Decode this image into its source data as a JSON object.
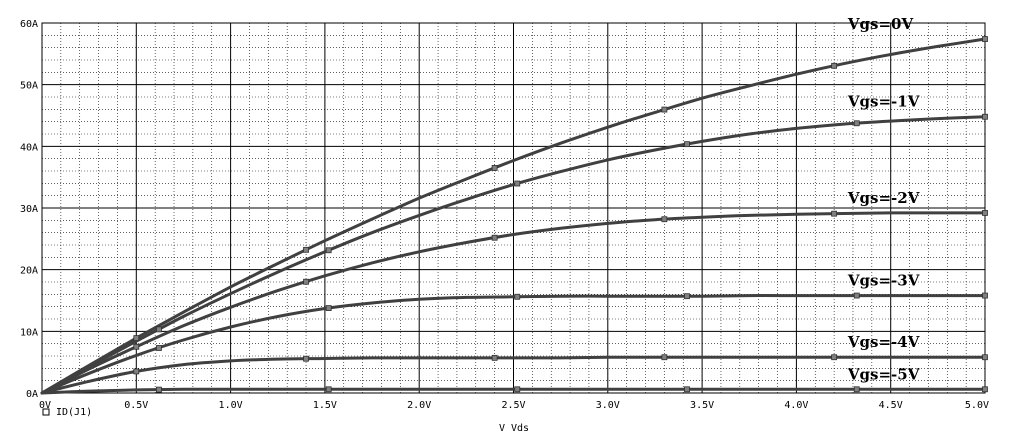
{
  "chart_data": {
    "type": "line",
    "xlabel": "V_Vds",
    "ylabel": "",
    "xlim": [
      0,
      5.0
    ],
    "ylim": [
      0,
      60
    ],
    "x_ticks": [
      "0V",
      "0.5V",
      "1.0V",
      "1.5V",
      "2.0V",
      "2.5V",
      "3.0V",
      "3.5V",
      "4.0V",
      "4.5V",
      "5.0V"
    ],
    "y_ticks": [
      "0A",
      "10A",
      "20A",
      "30A",
      "40A",
      "50A",
      "60A"
    ],
    "grid": true,
    "legend": {
      "label": "ID(J1)",
      "placement": "bottom-left"
    },
    "x": [
      0,
      0.25,
      0.5,
      0.75,
      1.0,
      1.25,
      1.5,
      1.75,
      2.0,
      2.25,
      2.5,
      2.75,
      3.0,
      3.25,
      3.5,
      3.75,
      4.0,
      4.25,
      4.5,
      4.75,
      5.0
    ],
    "series": [
      {
        "name": "Vgs=0V",
        "values": [
          0,
          4.5,
          8.9,
          13.1,
          17.2,
          21.0,
          24.7,
          28.2,
          31.6,
          34.7,
          37.7,
          40.5,
          43.1,
          45.5,
          47.8,
          49.8,
          51.7,
          53.4,
          54.9,
          56.2,
          57.4
        ]
      },
      {
        "name": "Vgs=-1V",
        "values": [
          0,
          4.3,
          8.4,
          12.4,
          16.1,
          19.6,
          22.9,
          26.0,
          28.8,
          31.4,
          33.8,
          35.9,
          37.8,
          39.4,
          40.8,
          42.0,
          42.9,
          43.6,
          44.1,
          44.5,
          44.8
        ]
      },
      {
        "name": "Vgs=-2V",
        "values": [
          0,
          3.9,
          7.5,
          10.9,
          13.9,
          16.6,
          19.0,
          21.1,
          22.9,
          24.4,
          25.7,
          26.7,
          27.5,
          28.1,
          28.5,
          28.8,
          29.0,
          29.1,
          29.2,
          29.2,
          29.2
        ]
      },
      {
        "name": "Vgs=-3V",
        "values": [
          0,
          3.2,
          6.1,
          8.6,
          10.7,
          12.4,
          13.7,
          14.6,
          15.2,
          15.5,
          15.6,
          15.7,
          15.7,
          15.7,
          15.7,
          15.8,
          15.8,
          15.8,
          15.8,
          15.8,
          15.8
        ]
      },
      {
        "name": "Vgs=-4V",
        "values": [
          0,
          1.9,
          3.5,
          4.6,
          5.2,
          5.5,
          5.6,
          5.7,
          5.7,
          5.7,
          5.7,
          5.7,
          5.8,
          5.8,
          5.8,
          5.8,
          5.8,
          5.8,
          5.8,
          5.8,
          5.8
        ]
      },
      {
        "name": "Vgs=-5V",
        "values": [
          0,
          0.3,
          0.5,
          0.6,
          0.6,
          0.6,
          0.6,
          0.6,
          0.6,
          0.6,
          0.6,
          0.6,
          0.6,
          0.6,
          0.6,
          0.6,
          0.6,
          0.6,
          0.6,
          0.6,
          0.6
        ]
      }
    ],
    "colors": {
      "background": "#ffffff",
      "grid": "#000000",
      "curve": "#404040",
      "text": "#000000"
    }
  }
}
